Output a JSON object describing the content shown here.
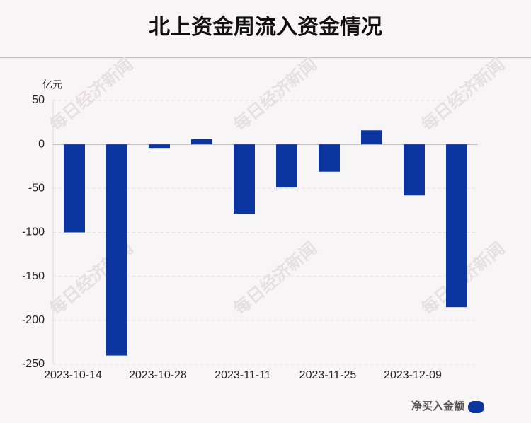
{
  "chart_data": {
    "type": "bar",
    "title": "北上资金周流入资金情况",
    "y_unit": "亿元",
    "categories": [
      "2023-10-14",
      null,
      "2023-10-28",
      null,
      "2023-11-11",
      null,
      "2023-11-25",
      null,
      "2023-12-09",
      null
    ],
    "series": [
      {
        "name": "净买入金额",
        "color": "#0c35a0",
        "values": [
          -100,
          -240,
          -4,
          6,
          -79,
          -49,
          -31,
          16,
          -58,
          -185
        ]
      }
    ],
    "ylim": [
      -250,
      50
    ],
    "yticks": [
      50,
      0,
      -50,
      -100,
      -150,
      -200,
      -250
    ],
    "grid": true,
    "watermark": "每日经济新闻"
  }
}
